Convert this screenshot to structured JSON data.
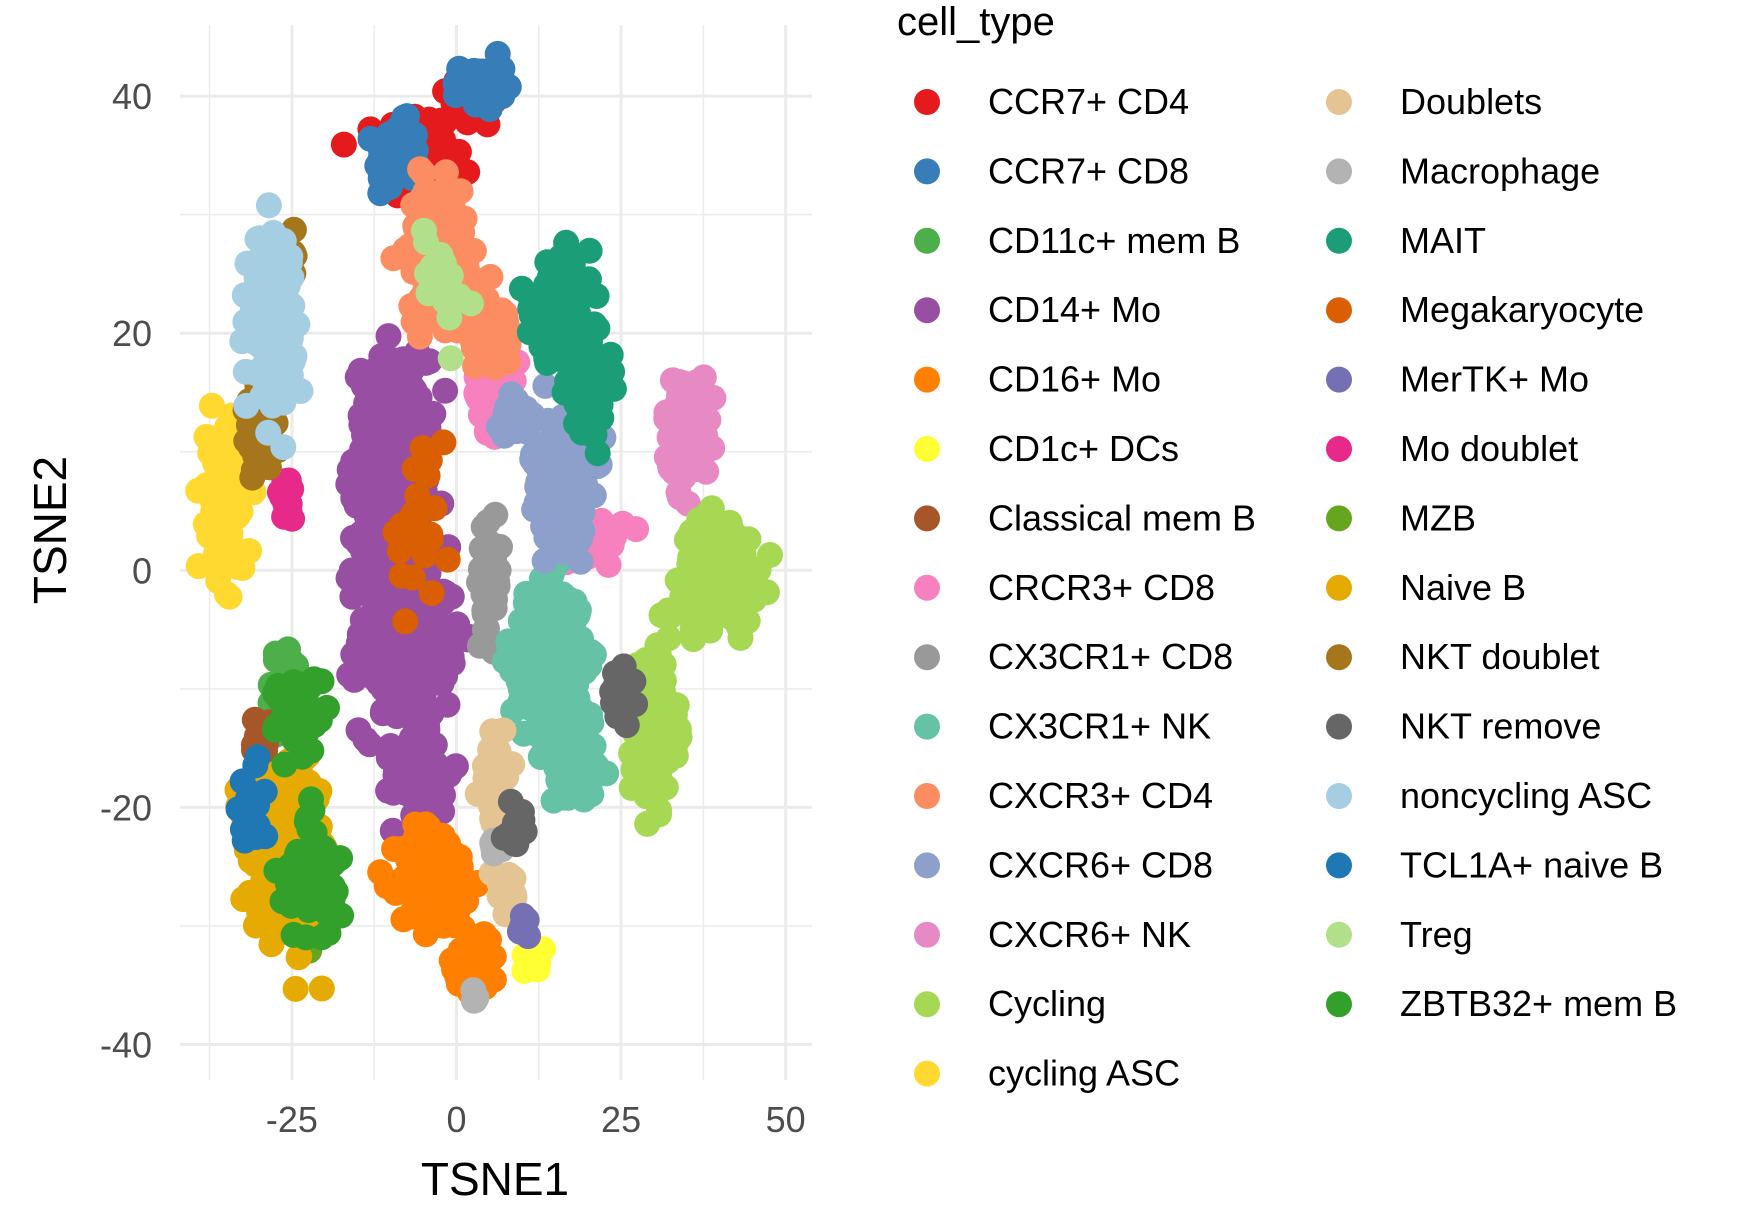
{
  "chart_data": {
    "type": "scatter",
    "xlabel": "TSNE1",
    "ylabel": "TSNE2",
    "xlim": [
      -42,
      54
    ],
    "ylim": [
      -43,
      46
    ],
    "x_ticks": [
      -25,
      0,
      25,
      50
    ],
    "x_tick_labels": [
      "-25",
      "0",
      "25",
      "50"
    ],
    "y_ticks": [
      -40,
      -20,
      0,
      20,
      40
    ],
    "y_tick_labels": [
      "-40",
      "-20",
      "0",
      "20",
      "40"
    ],
    "grid": true,
    "legend_title": "cell_type",
    "legend_position": "right",
    "legend_columns": 2,
    "series": [
      {
        "name": "CCR7+ CD4",
        "color": "#E41A1C",
        "centers": [
          [
            -6,
            35,
            5,
            3.5,
            120
          ],
          [
            3,
            40,
            4,
            2.5,
            60
          ]
        ]
      },
      {
        "name": "CCR7+ CD8",
        "color": "#377EB8",
        "centers": [
          [
            -9,
            35,
            3,
            2.5,
            60
          ],
          [
            4,
            41,
            3,
            2,
            50
          ]
        ]
      },
      {
        "name": "CD11c+ mem B",
        "color": "#4DAF4A",
        "centers": [
          [
            -26,
            -10,
            3,
            3,
            40
          ]
        ]
      },
      {
        "name": "CD14+ Mo",
        "color": "#984EA3",
        "centers": [
          [
            -10,
            10,
            5,
            7,
            260
          ],
          [
            -8,
            -5,
            6,
            8,
            280
          ],
          [
            -5,
            -17,
            4,
            3,
            80
          ]
        ]
      },
      {
        "name": "CD16+ Mo",
        "color": "#FF7F00",
        "centers": [
          [
            -3,
            -26,
            5,
            4,
            160
          ],
          [
            3,
            -33,
            3,
            2.5,
            60
          ]
        ]
      },
      {
        "name": "CD1c+ DCs",
        "color": "#FFFF33",
        "centers": [
          [
            12,
            -32.5,
            1.5,
            1,
            10
          ]
        ]
      },
      {
        "name": "Classical mem B",
        "color": "#A65628",
        "centers": [
          [
            -30,
            -15,
            2,
            2,
            20
          ]
        ]
      },
      {
        "name": "CRCR3+ CD8",
        "color": "#F781BF",
        "centers": [
          [
            6,
            15,
            3,
            3,
            40
          ],
          [
            22,
            3,
            3,
            2,
            30
          ]
        ]
      },
      {
        "name": "CX3CR1+ CD8",
        "color": "#999999",
        "centers": [
          [
            5,
            -1,
            1.5,
            4,
            50
          ]
        ]
      },
      {
        "name": "CX3CR1+ NK",
        "color": "#66C2A5",
        "centers": [
          [
            14,
            -8,
            5,
            6,
            200
          ],
          [
            18,
            -17,
            3,
            3,
            60
          ]
        ]
      },
      {
        "name": "CXCR3+ CD4",
        "color": "#FC8D62",
        "centers": [
          [
            -3,
            27,
            4,
            5,
            160
          ],
          [
            5,
            20,
            3,
            3,
            60
          ]
        ]
      },
      {
        "name": "CXCR6+ CD8",
        "color": "#8DA0CB",
        "centers": [
          [
            16,
            8,
            4,
            5,
            140
          ],
          [
            9,
            13,
            2,
            2,
            30
          ]
        ]
      },
      {
        "name": "CXCR6+ NK",
        "color": "#E78AC3",
        "centers": [
          [
            35,
            12,
            3,
            4,
            110
          ]
        ]
      },
      {
        "name": "Cycling",
        "color": "#A6D854",
        "centers": [
          [
            40,
            0,
            5,
            4,
            180
          ],
          [
            30,
            -13,
            3,
            6,
            140
          ]
        ]
      },
      {
        "name": "cycling ASC",
        "color": "#FFD92F",
        "centers": [
          [
            -35,
            6,
            2.5,
            6,
            140
          ]
        ]
      },
      {
        "name": "Doublets",
        "color": "#E5C494",
        "centers": [
          [
            6,
            -18,
            2,
            4,
            40
          ],
          [
            7,
            -27,
            1.5,
            1.5,
            12
          ]
        ]
      },
      {
        "name": "Macrophage",
        "color": "#B3B3B3",
        "centers": [
          [
            6,
            -23,
            1,
            1,
            6
          ],
          [
            3,
            -36,
            1,
            0.5,
            5
          ]
        ]
      },
      {
        "name": "MAIT",
        "color": "#1B9E77",
        "centers": [
          [
            16,
            22,
            4,
            4,
            150
          ],
          [
            20,
            15,
            3,
            3,
            70
          ]
        ]
      },
      {
        "name": "Megakaryocyte",
        "color": "#D95F02",
        "centers": [
          [
            -6,
            3,
            4,
            5,
            25
          ]
        ]
      },
      {
        "name": "MerTK+ Mo",
        "color": "#7570B3",
        "centers": [
          [
            10,
            -30,
            1,
            1,
            6
          ]
        ]
      },
      {
        "name": "Mo doublet",
        "color": "#E7298A",
        "centers": [
          [
            -26,
            6,
            1.2,
            1.5,
            14
          ]
        ]
      },
      {
        "name": "MZB",
        "color": "#66A61E",
        "centers": [
          [
            -22,
            -29,
            3,
            2,
            25
          ]
        ]
      },
      {
        "name": "Naive B",
        "color": "#E6AB02",
        "centers": [
          [
            -25,
            -24,
            5,
            6,
            280
          ]
        ]
      },
      {
        "name": "NKT doublet",
        "color": "#A6761D",
        "centers": [
          [
            -30,
            11,
            2,
            3,
            40
          ],
          [
            -26,
            26,
            2,
            2,
            15
          ]
        ]
      },
      {
        "name": "NKT remove",
        "color": "#666666",
        "centers": [
          [
            9,
            -22,
            1.5,
            1.5,
            14
          ],
          [
            25,
            -10,
            2,
            2,
            14
          ]
        ]
      },
      {
        "name": "noncycling ASC",
        "color": "#A6CEE3",
        "centers": [
          [
            -28,
            22,
            3,
            6,
            180
          ]
        ]
      },
      {
        "name": "TCL1A+ naive B",
        "color": "#1F78B4",
        "centers": [
          [
            -32,
            -20,
            3,
            4,
            20
          ]
        ]
      },
      {
        "name": "Treg",
        "color": "#B2DF8A",
        "centers": [
          [
            -2,
            25,
            3,
            4,
            20
          ]
        ]
      },
      {
        "name": "ZBTB32+ mem B",
        "color": "#33A02C",
        "centers": [
          [
            -24,
            -12,
            3,
            3,
            70
          ],
          [
            -22,
            -26,
            4,
            5,
            50
          ]
        ]
      }
    ]
  }
}
